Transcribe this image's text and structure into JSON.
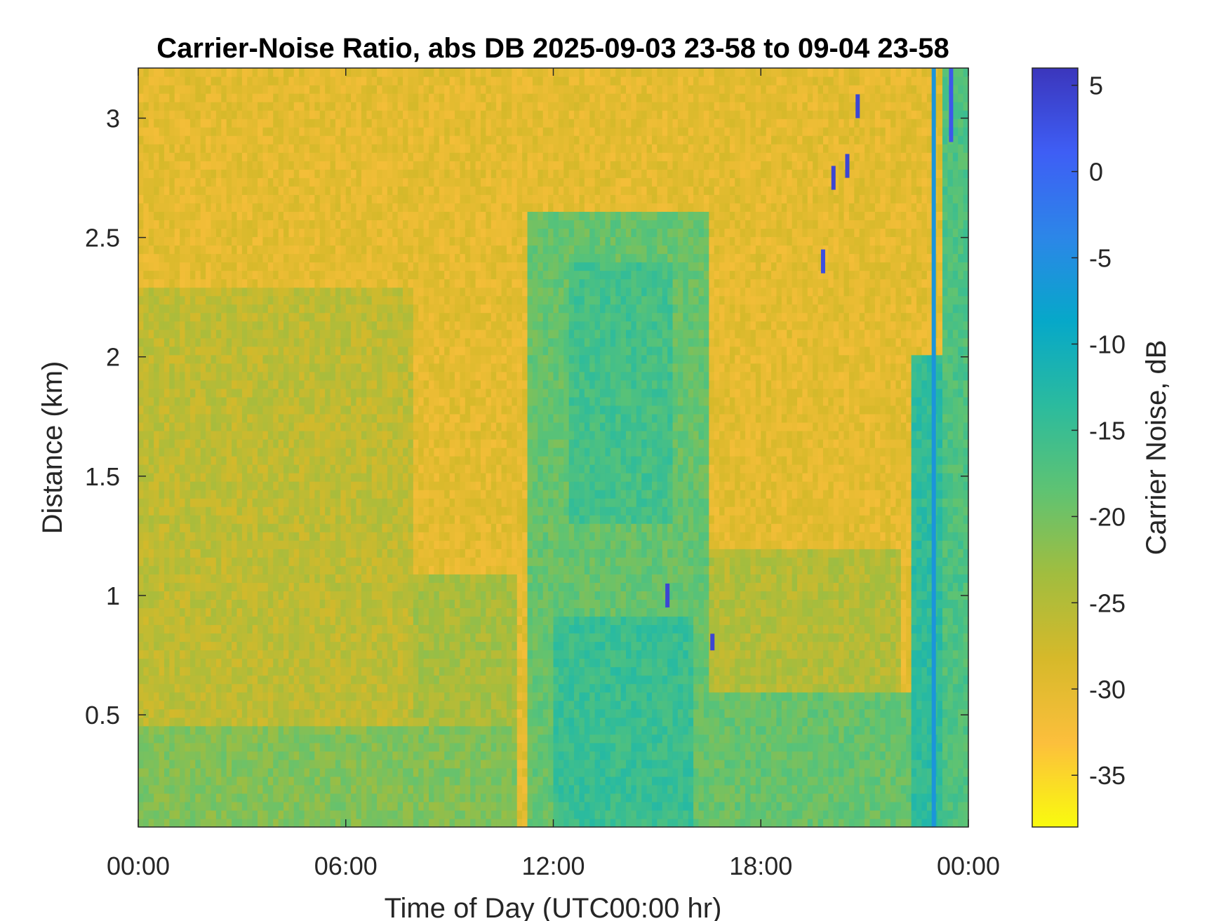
{
  "chart_data": {
    "type": "heatmap",
    "title": "Carrier-Noise Ratio, abs DB 2025-09-03 23-58 to 09-04 23-58",
    "xlabel": "Time of Day (UTC00:00 hr)",
    "ylabel": "Distance (km)",
    "colorbar_label": "Carrier Noise, dB",
    "x_ticks": [
      "00:00",
      "06:00",
      "12:00",
      "18:00",
      "00:00"
    ],
    "x_tick_hours": [
      0,
      6,
      12,
      18,
      24
    ],
    "xlim": [
      0,
      24
    ],
    "y_ticks": [
      "0.5",
      "1",
      "1.5",
      "2",
      "2.5",
      "3"
    ],
    "y_tick_values": [
      0.5,
      1,
      1.5,
      2,
      2.5,
      3
    ],
    "ylim": [
      0.03,
      3.21
    ],
    "colorbar_ticks": [
      "5",
      "0",
      "-5",
      "-10",
      "-15",
      "-20",
      "-25",
      "-30",
      "-35"
    ],
    "colorbar_values": [
      5,
      0,
      -5,
      -10,
      -15,
      -20,
      -25,
      -30,
      -35
    ],
    "clim": [
      -38,
      6
    ],
    "colormap": [
      "#f9fb0e",
      "#fcbf3c",
      "#d6b92a",
      "#a1bd3f",
      "#5ec373",
      "#2bbb9e",
      "#06a8c9",
      "#2c86e8",
      "#3e5ef5",
      "#3b36bc"
    ],
    "grid": false,
    "field_description": {
      "regions": [
        {
          "hours": [
            0,
            24
          ],
          "km": [
            0.03,
            3.21
          ],
          "value": -30
        },
        {
          "hours": [
            0,
            11
          ],
          "km": [
            0.03,
            1.1
          ],
          "value": -24
        },
        {
          "hours": [
            0,
            8
          ],
          "km": [
            0.03,
            2.3
          ],
          "value": -26
        },
        {
          "hours": [
            0,
            11
          ],
          "km": [
            0.03,
            0.45
          ],
          "value": -21
        },
        {
          "hours": [
            11.2,
            16.5
          ],
          "km": [
            0.03,
            2.6
          ],
          "value": -19
        },
        {
          "hours": [
            12.5,
            15.5
          ],
          "km": [
            1.3,
            2.4
          ],
          "value": -16
        },
        {
          "hours": [
            12,
            16
          ],
          "km": [
            0.03,
            0.9
          ],
          "value": -15
        },
        {
          "hours": [
            16.5,
            23
          ],
          "km": [
            0.03,
            0.6
          ],
          "value": -19
        },
        {
          "hours": [
            16.5,
            22
          ],
          "km": [
            0.6,
            1.2
          ],
          "value": -25
        },
        {
          "hours": [
            22.3,
            23.2
          ],
          "km": [
            0.03,
            2.0
          ],
          "value": -14
        },
        {
          "hours": [
            23.2,
            24
          ],
          "km": [
            0.03,
            3.21
          ],
          "value": -17
        }
      ],
      "streaks": [
        {
          "hour": 15.3,
          "km": [
            0.95,
            1.05
          ],
          "value": 4
        },
        {
          "hour": 16.6,
          "km": [
            0.77,
            0.84
          ],
          "value": 4
        },
        {
          "hour": 19.8,
          "km": [
            2.35,
            2.45
          ],
          "value": 3
        },
        {
          "hour": 20.1,
          "km": [
            2.7,
            2.8
          ],
          "value": 4
        },
        {
          "hour": 20.5,
          "km": [
            2.75,
            2.85
          ],
          "value": 4
        },
        {
          "hour": 20.8,
          "km": [
            3.0,
            3.1
          ],
          "value": 4
        },
        {
          "hour": 23.0,
          "km": [
            0.03,
            3.21
          ],
          "value": -6
        },
        {
          "hour": 23.5,
          "km": [
            2.9,
            3.21
          ],
          "value": 2
        }
      ]
    }
  }
}
